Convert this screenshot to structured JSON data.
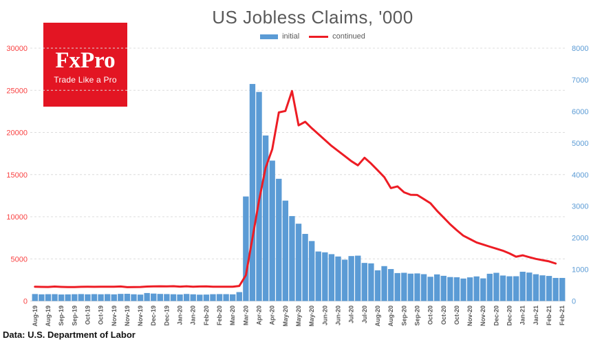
{
  "header": {
    "title": "US Jobless Claims, '000"
  },
  "legend": {
    "items": [
      {
        "label": "initial",
        "swatch": "bar-swatch-icon",
        "color": "#5b9bd5"
      },
      {
        "label": "continued",
        "swatch": "line-swatch-icon",
        "color": "#ed1c24"
      }
    ]
  },
  "logo": {
    "name": "FxPro",
    "tagline": "Trade Like a Pro",
    "bg_color": "#e31523",
    "text_color": "#ffffff"
  },
  "footer": {
    "source": "Data: U.S. Department of Labor"
  },
  "chart_data": {
    "type": "bar",
    "title": "US Jobless Claims, '000",
    "unit": "thousands",
    "grid": "horizontal-dashed",
    "legend_position": "top-center",
    "x_tick_rotation": -90,
    "x_labels_shown_every_other_bar": true,
    "x_labels": [
      "Aug-19",
      "Aug-19",
      "Sep-19",
      "Sep-19",
      "Oct-19",
      "Oct-19",
      "Nov-19",
      "Nov-19",
      "Nov-19",
      "Dec-19",
      "Dec-19",
      "Jan-20",
      "Jan-20",
      "Feb-20",
      "Feb-20",
      "Mar-20",
      "Mar-20",
      "Apr-20",
      "Apr-20",
      "May-20",
      "May-20",
      "May-20",
      "Jun-20",
      "Jun-20",
      "Jul-20",
      "Jul-20",
      "Aug-20",
      "Aug-20",
      "Sep-20",
      "Sep-20",
      "Oct-20",
      "Oct-20",
      "Oct-20",
      "Nov-20",
      "Nov-20",
      "Dec-20",
      "Dec-20",
      "Jan-21",
      "Jan-21",
      "Feb-21",
      "Feb-21"
    ],
    "left_axis": {
      "min": 0,
      "max": 30000,
      "step": 5000,
      "ticks": [
        0,
        5000,
        10000,
        15000,
        20000,
        25000,
        30000
      ],
      "label_color": "#f94141"
    },
    "right_axis": {
      "min": 0,
      "max": 8000,
      "step": 1000,
      "ticks": [
        0,
        1000,
        2000,
        3000,
        4000,
        5000,
        6000,
        7000,
        8000
      ],
      "label_color": "#5b9bd5"
    },
    "series": [
      {
        "name": "initial",
        "type": "bar",
        "axis": "right",
        "color": "#5b9bd5",
        "values": [
          221,
          211,
          216,
          217,
          206,
          210,
          215,
          220,
          212,
          218,
          213,
          218,
          211,
          225,
          228,
          213,
          203,
          252,
          235,
          224,
          220,
          214,
          207,
          223,
          212,
          201,
          204,
          215,
          219,
          217,
          211,
          282,
          3307,
          6867,
          6615,
          5237,
          4442,
          3867,
          3176,
          2687,
          2446,
          2123,
          1897,
          1566,
          1540,
          1482,
          1408,
          1308,
          1422,
          1435,
          1205,
          1191,
          971,
          1104,
          1011,
          884,
          893,
          866,
          873,
          849,
          767,
          842,
          797,
          758,
          751,
          711,
          748,
          778,
          716,
          862,
          892,
          806,
          782,
          784,
          926,
          900,
          847,
          812,
          793,
          730,
          730
        ]
      },
      {
        "name": "continued",
        "type": "line",
        "axis": "left",
        "color": "#ed1c24",
        "values": [
          1697,
          1674,
          1662,
          1712,
          1674,
          1647,
          1655,
          1682,
          1686,
          1683,
          1693,
          1690,
          1697,
          1721,
          1640,
          1656,
          1667,
          1715,
          1728,
          1745,
          1737,
          1759,
          1703,
          1746,
          1698,
          1725,
          1729,
          1688,
          1702,
          1702,
          1702,
          1784,
          3059,
          7446,
          11914,
          15819,
          18011,
          22377,
          22548,
          24912,
          20841,
          21268,
          20500,
          19800,
          19100,
          18400,
          17800,
          17200,
          16600,
          16100,
          17000,
          16300,
          15500,
          14700,
          13400,
          13600,
          12900,
          12600,
          12580,
          12100,
          11600,
          10700,
          9900,
          9100,
          8400,
          7750,
          7350,
          6950,
          6700,
          6450,
          6210,
          5970,
          5640,
          5260,
          5420,
          5200,
          5000,
          4850,
          4700,
          4450
        ]
      }
    ]
  }
}
